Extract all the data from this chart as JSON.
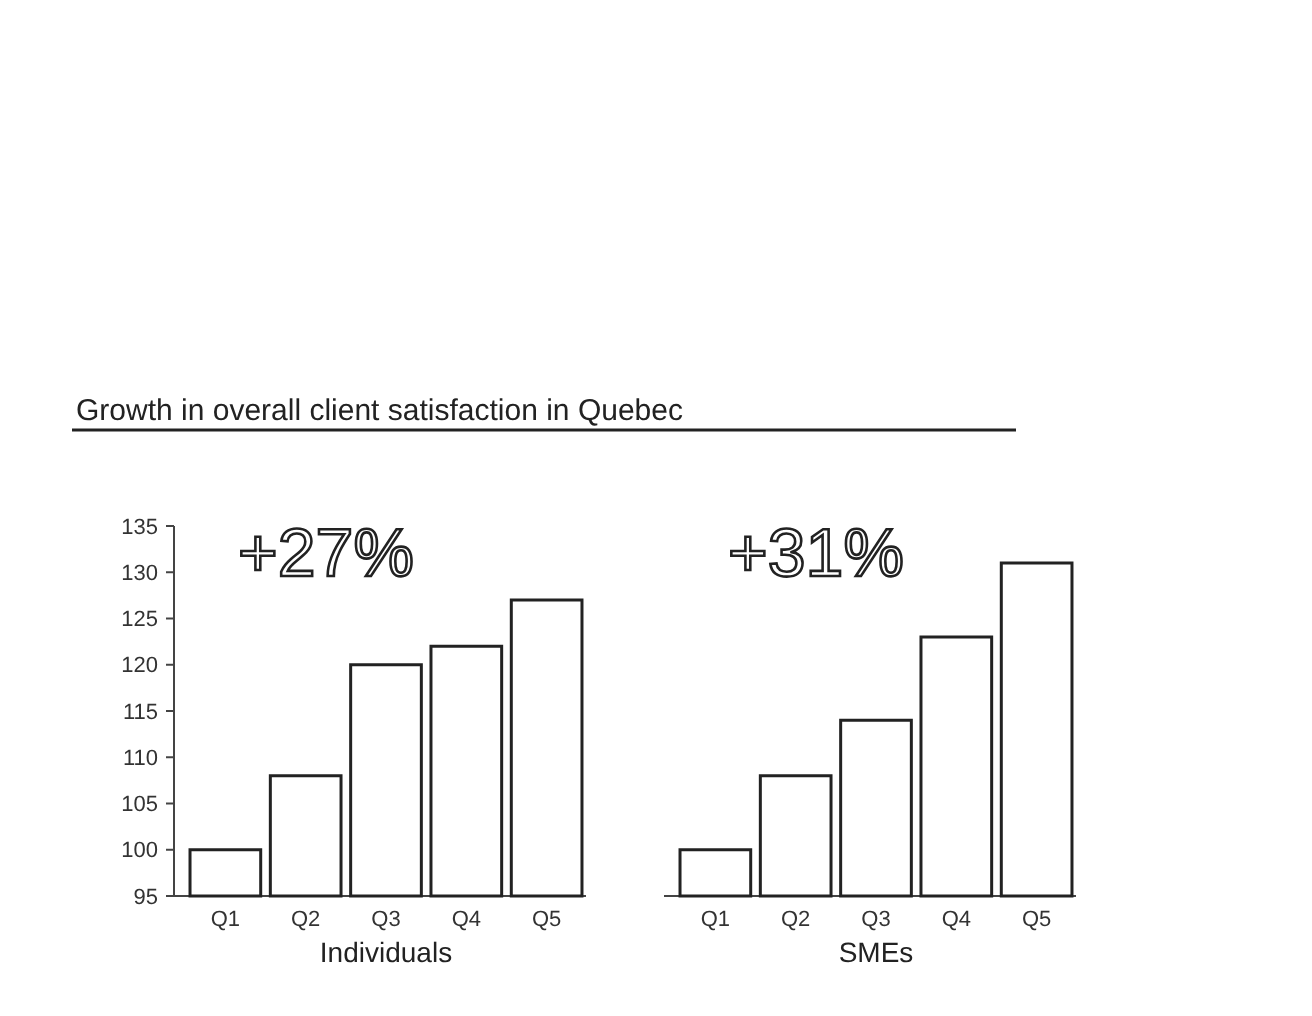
{
  "chart_data": [
    {
      "type": "bar",
      "title": "Growth in overall client satisfaction in Quebec",
      "xlabel": "Individuals",
      "categories": [
        "Q1",
        "Q2",
        "Q3",
        "Q4",
        "Q5"
      ],
      "values": [
        100,
        108,
        120,
        122,
        127
      ],
      "color": "#ffffff",
      "ylim": [
        95,
        135
      ],
      "yticks": [
        95,
        100,
        105,
        110,
        115,
        120,
        125,
        130,
        135
      ],
      "annotations": [
        "+27%"
      ]
    },
    {
      "type": "bar",
      "xlabel": "SMEs",
      "categories": [
        "Q1",
        "Q2",
        "Q3",
        "Q4",
        "Q5"
      ],
      "values": [
        100,
        108,
        114,
        123,
        131
      ],
      "color": "#ffffff",
      "ylim": [
        95,
        135
      ],
      "tick_labels": "x",
      "annotations": [
        "+31%"
      ]
    }
  ]
}
